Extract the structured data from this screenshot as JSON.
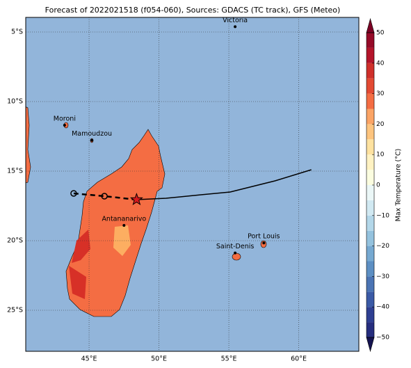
{
  "title": "Forecast of 2022021518 (f054-060), Sources: GDACS (TC track), GFS (Meteo)",
  "map": {
    "lonlim": [
      40.47,
      64.3
    ],
    "latlim": [
      -27.95,
      -3.95
    ],
    "lonticks": [
      {
        "value": 45,
        "label": "45°E"
      },
      {
        "value": 50,
        "label": "50°E"
      },
      {
        "value": 55,
        "label": "55°E"
      },
      {
        "value": 60,
        "label": "60°E"
      }
    ],
    "latticks": [
      {
        "value": -5,
        "label": "5°S"
      },
      {
        "value": -10,
        "label": "10°S"
      },
      {
        "value": -15,
        "label": "15°S"
      },
      {
        "value": -20,
        "label": "20°S"
      },
      {
        "value": -25,
        "label": "25°S"
      }
    ],
    "ocean_color": "#92b5da",
    "cities": [
      {
        "name": "Victoria",
        "lon": 55.45,
        "lat": -4.62
      },
      {
        "name": "Moroni",
        "lon": 43.25,
        "lat": -11.7
      },
      {
        "name": "Mamoudzou",
        "lon": 45.2,
        "lat": -12.78
      },
      {
        "name": "Antananarivo",
        "lon": 47.5,
        "lat": -18.9
      },
      {
        "name": "Port Louis",
        "lon": 57.5,
        "lat": -20.16
      },
      {
        "name": "Saint-Denis",
        "lon": 55.45,
        "lat": -20.88
      }
    ],
    "track": {
      "observed": {
        "lon": [
          60.9,
          58.3,
          55.1,
          53.0,
          50.5,
          48.4
        ],
        "lat": [
          -14.9,
          -15.7,
          -16.5,
          -16.7,
          -16.95,
          -17.05
        ]
      },
      "forecast": {
        "lon": [
          48.4,
          46.1,
          43.9
        ],
        "lat": [
          -17.05,
          -16.8,
          -16.6
        ]
      }
    }
  },
  "colorbar": {
    "label": "Max Temperature (°C)",
    "levels": [
      -50,
      -45,
      -40,
      -35,
      -30,
      -25,
      -20,
      -15,
      -10,
      -5,
      0,
      5,
      10,
      15,
      20,
      25,
      30,
      35,
      40,
      45,
      50
    ],
    "colors": [
      "#262d7e",
      "#2e3f92",
      "#3b5aa6",
      "#4b74b4",
      "#5d8fc3",
      "#76a9d1",
      "#94c2de",
      "#b3d7e9",
      "#d1e9f2",
      "#ebf7f7",
      "#fbfde0",
      "#fff2c2",
      "#fee2a0",
      "#fdc47e",
      "#fba465",
      "#f46d43",
      "#e34a33",
      "#cf2f2a",
      "#b4142a",
      "#960a28"
    ],
    "under_color": "#151350",
    "over_color": "#7c0024",
    "ticks": [
      {
        "value": -50,
        "label": "−50"
      },
      {
        "value": -40,
        "label": "−40"
      },
      {
        "value": -30,
        "label": "−30"
      },
      {
        "value": -20,
        "label": "−20"
      },
      {
        "value": -10,
        "label": "−10"
      },
      0,
      10,
      20,
      30,
      40,
      50
    ]
  }
}
